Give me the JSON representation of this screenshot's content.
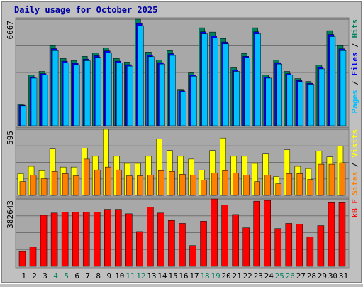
{
  "chart_data": [
    {
      "type": "bar",
      "title": "Daily usage for October 2025",
      "ylim": [
        0,
        6667
      ],
      "yticks": [
        6667
      ],
      "legend_separator": "/",
      "series": [
        {
          "name": "Hits",
          "color": "#00805c",
          "values": [
            1342,
            3177,
            3400,
            5011,
            4206,
            4071,
            4340,
            4564,
            4877,
            4206,
            3982,
            6667,
            4608,
            4116,
            4698,
            2282,
            3311,
            6129,
            5861,
            5458,
            3624,
            4519,
            6129,
            3177,
            4116,
            3400,
            2953,
            2774,
            3803,
            5951,
            5011
          ]
        },
        {
          "name": "Files",
          "color": "#0000ff",
          "values": [
            1290,
            3050,
            3260,
            4820,
            4040,
            3910,
            4170,
            4380,
            4680,
            4040,
            3820,
            6400,
            4420,
            3950,
            4510,
            2190,
            3180,
            5880,
            5630,
            5240,
            3480,
            4340,
            5880,
            3050,
            3950,
            3260,
            2830,
            2660,
            3650,
            5710,
            4810
          ]
        },
        {
          "name": "Pages",
          "color": "#00c0ff",
          "values": [
            1250,
            2980,
            3180,
            4700,
            3940,
            3820,
            4070,
            4280,
            4570,
            3940,
            3730,
            6260,
            4320,
            3860,
            4400,
            2130,
            3100,
            5750,
            5500,
            5120,
            3400,
            4240,
            5750,
            2980,
            3860,
            3180,
            2760,
            2600,
            3560,
            5580,
            4700
          ]
        }
      ]
    },
    {
      "type": "bar",
      "ylim": [
        0,
        595
      ],
      "yticks": [
        595
      ],
      "legend_separator": "/",
      "series": [
        {
          "name": "Visits",
          "color": "#ffff00",
          "values": [
            196,
            262,
            222,
            418,
            255,
            255,
            425,
            353,
            595,
            353,
            288,
            288,
            353,
            510,
            405,
            353,
            327,
            229,
            405,
            517,
            353,
            353,
            288,
            373,
            170,
            412,
            262,
            242,
            399,
            347,
            445
          ]
        },
        {
          "name": "Sites",
          "color": "#ff8000",
          "values": [
            124,
            183,
            150,
            216,
            196,
            176,
            327,
            229,
            255,
            229,
            176,
            176,
            183,
            222,
            216,
            190,
            183,
            137,
            203,
            222,
            203,
            183,
            124,
            183,
            105,
            196,
            196,
            144,
            281,
            281,
            294
          ]
        }
      ]
    },
    {
      "type": "bar",
      "ylim": [
        0,
        382643
      ],
      "yticks": [
        382643
      ],
      "categories": [
        "1",
        "2",
        "3",
        "4",
        "5",
        "6",
        "7",
        "8",
        "9",
        "10",
        "11",
        "12",
        "13",
        "14",
        "15",
        "16",
        "17",
        "18",
        "19",
        "20",
        "21",
        "22",
        "23",
        "24",
        "25",
        "26",
        "27",
        "28",
        "29",
        "30",
        "31"
      ],
      "category_colors": [
        "#000000",
        "#000000",
        "#000000",
        "#00805c",
        "#00805c",
        "#000000",
        "#000000",
        "#000000",
        "#000000",
        "#000000",
        "#00805c",
        "#00805c",
        "#000000",
        "#000000",
        "#000000",
        "#000000",
        "#000000",
        "#00805c",
        "#00805c",
        "#000000",
        "#000000",
        "#000000",
        "#000000",
        "#000000",
        "#00805c",
        "#00805c",
        "#000000",
        "#000000",
        "#000000",
        "#000000",
        "#000000"
      ],
      "series": [
        {
          "name": "kB F",
          "color": "#ff0000",
          "values": [
            84100,
            109330,
            290145,
            302760,
            306965,
            306965,
            306965,
            306965,
            323785,
            323785,
            298555,
            197635,
            336400,
            302760,
            260710,
            243890,
            117740,
            256505,
            382643,
            349015,
            294350,
            218660,
            370040,
            374245,
            214455,
            243890,
            239685,
            168200,
            231275,
            361630,
            361630
          ]
        }
      ]
    }
  ]
}
